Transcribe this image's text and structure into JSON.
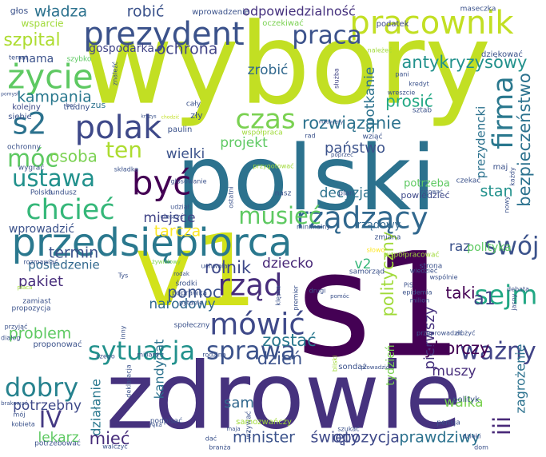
{
  "words": [
    {
      "t": "wybory",
      "c": "#c2df23"
    },
    {
      "t": "polski",
      "c": "#2c728e"
    },
    {
      "t": "s1",
      "c": "#440154"
    },
    {
      "t": "zdrowie",
      "c": "#46327e"
    },
    {
      "t": "v1",
      "c": "#d2e21b"
    },
    {
      "t": "przedsiębiorca",
      "c": "#2a788e"
    },
    {
      "t": "prezydent",
      "c": "#3b528b"
    },
    {
      "t": "pracownik",
      "c": "#c2df23"
    },
    {
      "t": "polak",
      "c": "#3e4989"
    },
    {
      "t": "życie",
      "c": "#5ec962"
    },
    {
      "t": "być",
      "c": "#440154"
    },
    {
      "t": "rządzący",
      "c": "#31688e"
    },
    {
      "t": "chcieć",
      "c": "#35b779"
    },
    {
      "t": "ustawa",
      "c": "#21918c"
    },
    {
      "t": "sytuacja",
      "c": "#21918c"
    },
    {
      "t": "czas",
      "c": "#7ad151"
    },
    {
      "t": "rząd",
      "c": "#472d7b"
    },
    {
      "t": "mówić",
      "c": "#3e4989"
    },
    {
      "t": "sprawa",
      "c": "#3b528b"
    },
    {
      "t": "dobry",
      "c": "#26828e"
    },
    {
      "t": "ważny",
      "c": "#414487"
    },
    {
      "t": "sejm",
      "c": "#22a884"
    },
    {
      "t": "swój",
      "c": "#3b528b"
    },
    {
      "t": "firma",
      "c": "#2a788e"
    },
    {
      "t": "praca",
      "c": "#3b528b"
    },
    {
      "t": "s2",
      "c": "#2c728e"
    },
    {
      "t": "móc",
      "c": "#5ec962"
    },
    {
      "t": "ten",
      "c": "#addc30"
    },
    {
      "t": "musieć",
      "c": "#5ec962"
    },
    {
      "t": "IV",
      "c": "#443983"
    },
    {
      "t": "iii",
      "c": "#482878"
    },
    {
      "t": "rozwiązanie",
      "c": "#2c728e"
    },
    {
      "t": "antykryzysowy",
      "c": "#21918c"
    },
    {
      "t": "bezpieczeństwo",
      "c": "#2c728e"
    },
    {
      "t": "władza",
      "c": "#2c728e"
    },
    {
      "t": "robić",
      "c": "#3b528b"
    },
    {
      "t": "ochrona",
      "c": "#414487"
    },
    {
      "t": "odpowiedzialność",
      "c": "#46327e"
    },
    {
      "t": "zrobić",
      "c": "#31688e"
    },
    {
      "t": "kampania",
      "c": "#2a788e"
    },
    {
      "t": "szpital",
      "c": "#addc30"
    },
    {
      "t": "gospodarka",
      "c": "#414487"
    },
    {
      "t": "mama",
      "c": "#3b528b"
    },
    {
      "t": "spotkanie",
      "c": "#2c728e"
    },
    {
      "t": "prosić",
      "c": "#22a884"
    },
    {
      "t": "prezydencki",
      "c": "#2c728e"
    },
    {
      "t": "projekt",
      "c": "#5ec962"
    },
    {
      "t": "państwo",
      "c": "#3b528b"
    },
    {
      "t": "wielki",
      "c": "#3b528b"
    },
    {
      "t": "osoba",
      "c": "#7ad151"
    },
    {
      "t": "stan",
      "c": "#21918c"
    },
    {
      "t": "decyzja",
      "c": "#2c728e"
    },
    {
      "t": "miejsce",
      "c": "#414487"
    },
    {
      "t": "tarcza",
      "c": "#fde725"
    },
    {
      "t": "termin",
      "c": "#3b528b"
    },
    {
      "t": "rolnik",
      "c": "#3e4989"
    },
    {
      "t": "dziecko",
      "c": "#482878"
    },
    {
      "t": "v2",
      "c": "#35b779"
    },
    {
      "t": "raz",
      "c": "#3b528b"
    },
    {
      "t": "polityka",
      "c": "#5ec962"
    },
    {
      "t": "polityczny",
      "c": "#a0da39"
    },
    {
      "t": "taki",
      "c": "#440154"
    },
    {
      "t": "a1",
      "c": "#414487"
    },
    {
      "t": "pakiet",
      "c": "#472d7b"
    },
    {
      "t": "pomoc",
      "c": "#3b528b"
    },
    {
      "t": "problem",
      "c": "#5ec962"
    },
    {
      "t": "narodowy",
      "c": "#31688e"
    },
    {
      "t": "zostać",
      "c": "#2a788e"
    },
    {
      "t": "dzień",
      "c": "#3b528b"
    },
    {
      "t": "pierwszy",
      "c": "#46327e"
    },
    {
      "t": "wyborczy",
      "c": "#440154"
    },
    {
      "t": "muszy",
      "c": "#472d7b"
    },
    {
      "t": "zagrożenie",
      "c": "#2c728e"
    },
    {
      "t": "walka",
      "c": "#7ad151"
    },
    {
      "t": "potrzebny",
      "c": "#3e4989"
    },
    {
      "t": "lekarz",
      "c": "#5ec962"
    },
    {
      "t": "działanie",
      "c": "#2a788e"
    },
    {
      "t": "kandydat",
      "c": "#2c728e"
    },
    {
      "t": "sam",
      "c": "#31688e"
    },
    {
      "t": "mieć",
      "c": "#472d7b"
    },
    {
      "t": "minister",
      "c": "#3b528b"
    },
    {
      "t": "święty",
      "c": "#3e4989"
    },
    {
      "t": "opozycja",
      "c": "#3e4989"
    },
    {
      "t": "prawdziwy",
      "c": "#2c728e"
    },
    {
      "t": "tydzień",
      "c": "#7ad151"
    },
    {
      "t": "wprowadzić",
      "c": "#3b528b"
    },
    {
      "t": "posiedzenie",
      "c": "#31688e"
    },
    {
      "t": "potrzeba",
      "c": "#5ec962"
    },
    {
      "t": "powiedzieć",
      "c": "#3e4989"
    },
    {
      "t": "rządowy",
      "c": "#31688e"
    },
    {
      "t": "głos",
      "c": "#3b528b"
    },
    {
      "t": "wsparcie",
      "c": "#a0da39"
    },
    {
      "t": "wprowadzenie",
      "c": "#3b528b"
    },
    {
      "t": "oczekiwać",
      "c": "#7ad151"
    },
    {
      "t": "podatek",
      "c": "#3e4989"
    },
    {
      "t": "maseczka",
      "c": "#3b528b"
    },
    {
      "t": "należeć",
      "c": "#a0da39"
    },
    {
      "t": "dziękować",
      "c": "#3b528b"
    },
    {
      "t": "szybko",
      "c": "#5ec962"
    },
    {
      "t": "temat",
      "c": "#3b528b"
    },
    {
      "t": "znaleźć",
      "c": "#3b528b"
    },
    {
      "t": "kolejny",
      "c": "#3e4989"
    },
    {
      "t": "trudny",
      "c": "#3b528b"
    },
    {
      "t": "zus",
      "c": "#2c728e"
    },
    {
      "t": "bać",
      "c": "#3b528b"
    },
    {
      "t": "pomysł",
      "c": "#3b528b"
    },
    {
      "t": "siebie",
      "c": "#3b528b"
    },
    {
      "t": "cały",
      "c": "#3b528b"
    },
    {
      "t": "zły",
      "c": "#3b528b"
    },
    {
      "t": "służba",
      "c": "#414487"
    },
    {
      "t": "pani",
      "c": "#3b528b"
    },
    {
      "t": "kredyt",
      "c": "#3b528b"
    },
    {
      "t": "wreszcie",
      "c": "#3b528b"
    },
    {
      "t": "sztab",
      "c": "#3b528b"
    },
    {
      "t": "kryzys",
      "c": "#3b528b"
    },
    {
      "t": "chodzić",
      "c": "#c2df23"
    },
    {
      "t": "medyczny",
      "c": "#3b528b"
    },
    {
      "t": "ochronny",
      "c": "#3b528b"
    },
    {
      "t": "paulin",
      "c": "#3b528b"
    },
    {
      "t": "współpraca",
      "c": "#a0da39"
    },
    {
      "t": "wziąć",
      "c": "#3b528b"
    },
    {
      "t": "rad",
      "c": "#3b528b"
    },
    {
      "t": "poprzeć",
      "c": "#3b528b"
    },
    {
      "t": "maj",
      "c": "#3b528b"
    },
    {
      "t": "każdy",
      "c": "#3b528b"
    },
    {
      "t": "wygrać",
      "c": "#3b528b"
    },
    {
      "t": "składka",
      "c": "#3b528b"
    },
    {
      "t": "przygotować",
      "c": "#a0da39"
    },
    {
      "t": "czekać",
      "c": "#3b528b"
    },
    {
      "t": "ratować",
      "c": "#3b528b"
    },
    {
      "t": "nowy",
      "c": "#3b528b"
    },
    {
      "t": "fundusz",
      "c": "#3b528b"
    },
    {
      "t": "Polska",
      "c": "#3b528b"
    },
    {
      "t": "głosowanie",
      "c": "#3b528b"
    },
    {
      "t": "nasz",
      "c": "#3b528b"
    },
    {
      "t": "plan",
      "c": "#3b528b"
    },
    {
      "t": "ostatni",
      "c": "#3b528b"
    },
    {
      "t": "udział",
      "c": "#3b528b"
    },
    {
      "t": "cieszyć",
      "c": "#3b528b"
    },
    {
      "t": "minimalny",
      "c": "#3b528b"
    },
    {
      "t": "zmiana",
      "c": "#3b528b"
    },
    {
      "t": "słowo",
      "c": "#fde725"
    },
    {
      "t": "współpracować",
      "c": "#a0da39"
    },
    {
      "t": "strona",
      "c": "#3b528b"
    },
    {
      "t": "rozmawiać",
      "c": "#3b528b"
    },
    {
      "t": "żywiołowy",
      "c": "#7ad151"
    },
    {
      "t": "uchwała",
      "c": "#3b528b"
    },
    {
      "t": "Tys",
      "c": "#3b528b"
    },
    {
      "t": "rodak",
      "c": "#3b528b"
    },
    {
      "t": "środki",
      "c": "#3b528b"
    },
    {
      "t": "poprawka",
      "c": "#3b528b"
    },
    {
      "t": "pytanie",
      "c": "#3b528b"
    },
    {
      "t": "płaca",
      "c": "#a0da39"
    },
    {
      "t": "zamiast",
      "c": "#3b528b"
    },
    {
      "t": "propozycja",
      "c": "#3b528b"
    },
    {
      "t": "przyjąć",
      "c": "#3b528b"
    },
    {
      "t": "dialog",
      "c": "#3b528b"
    },
    {
      "t": "inny",
      "c": "#3b528b"
    },
    {
      "t": "społeczny",
      "c": "#3b528b"
    },
    {
      "t": "klęska",
      "c": "#3b528b"
    },
    {
      "t": "pomóc",
      "c": "#3b528b"
    },
    {
      "t": "premier",
      "c": "#3b528b"
    },
    {
      "t": "drugi",
      "c": "#3b528b"
    },
    {
      "t": "samorząd",
      "c": "#3b528b"
    },
    {
      "t": "wiedzieć",
      "c": "#3b528b"
    },
    {
      "t": "wspólnie",
      "c": "#3b528b"
    },
    {
      "t": "PiS",
      "c": "#3b528b"
    },
    {
      "t": "epidemia",
      "c": "#3b528b"
    },
    {
      "t": "milion",
      "c": "#3b528b"
    },
    {
      "t": "debata",
      "c": "#3b528b"
    },
    {
      "t": "jasny",
      "c": "#3b528b"
    },
    {
      "t": "przeprowadzić",
      "c": "#3b528b"
    },
    {
      "t": "złożyć",
      "c": "#3b528b"
    },
    {
      "t": "proponować",
      "c": "#3b528b"
    },
    {
      "t": "czego",
      "c": "#3b528b"
    },
    {
      "t": "miliard",
      "c": "#3b528b"
    },
    {
      "t": "rodzina",
      "c": "#3b528b"
    },
    {
      "t": "bliski",
      "c": "#a0da39"
    },
    {
      "t": "sondaż",
      "c": "#3b528b"
    },
    {
      "t": "prowadzić",
      "c": "#3b528b"
    },
    {
      "t": "polityk",
      "c": "#3b528b"
    },
    {
      "t": "brakować",
      "c": "#3b528b"
    },
    {
      "t": "mój",
      "c": "#3b528b"
    },
    {
      "t": "kobieta",
      "c": "#3b528b"
    },
    {
      "t": "potrzebować",
      "c": "#3b528b"
    },
    {
      "t": "ręka",
      "c": "#3b528b"
    },
    {
      "t": "podpisać",
      "c": "#3b528b"
    },
    {
      "t": "maja",
      "c": "#3b528b"
    },
    {
      "t": "wzywać",
      "c": "#3b528b"
    },
    {
      "t": "samozwańczy",
      "c": "#a0da39"
    },
    {
      "t": "dać",
      "c": "#3b528b"
    },
    {
      "t": "walczyć",
      "c": "#3b528b"
    },
    {
      "t": "branża",
      "c": "#3b528b"
    },
    {
      "t": "szukać",
      "c": "#3b528b"
    },
    {
      "t": "pensja",
      "c": "#3b528b"
    },
    {
      "t": "dzięki",
      "c": "#3b528b"
    },
    {
      "t": "dom",
      "c": "#3b528b"
    },
    {
      "t": "deklaracja",
      "c": "#3b528b"
    },
    {
      "t": "jeden",
      "c": "#3b528b"
    }
  ]
}
